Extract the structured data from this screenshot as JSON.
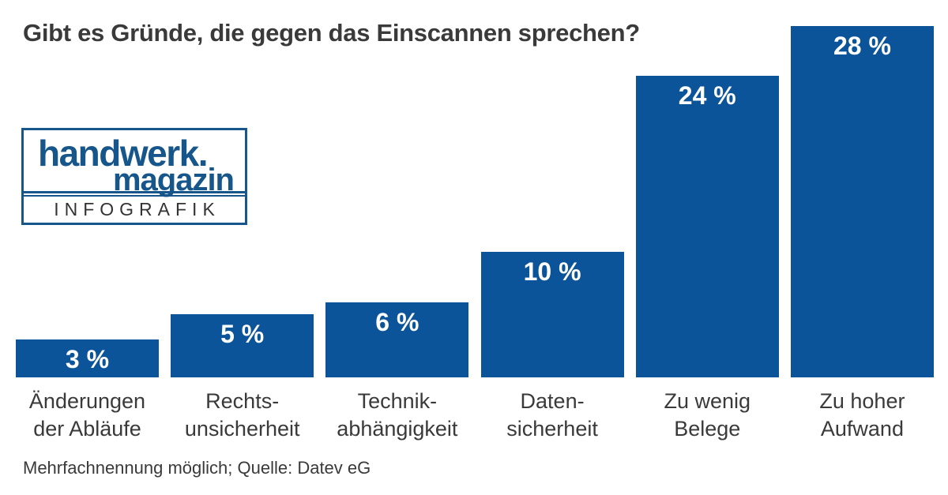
{
  "title": "Gibt es Gründe, die gegen das Einscannen sprechen?",
  "logo": {
    "line1": "handwerk.",
    "line2": "magazin",
    "banner": "INFOGRAFIK"
  },
  "footer": "Mehrfachnennung möglich; Quelle: Datev eG",
  "colors": {
    "bar_blue": "#0b5499",
    "logo_blue": "#17568a",
    "text_dark": "#3a3a3a",
    "value_label_white": "#ffffff",
    "background": "#ffffff"
  },
  "chart_data": {
    "type": "bar",
    "title": "Gibt es Gründe, die gegen das Einscannen sprechen?",
    "categories": [
      "Änderungen der Abläufe",
      "Rechtsunsicherheit",
      "Technikabhängigkeit",
      "Datensicherheit",
      "Zu wenig Belege",
      "Zu hoher Aufwand"
    ],
    "category_lines": [
      [
        "Änderungen",
        "der Abläufe"
      ],
      [
        "Rechts-",
        "unsicherheit"
      ],
      [
        "Technik-",
        "abhängigkeit"
      ],
      [
        "Daten-",
        "sicherheit"
      ],
      [
        "Zu wenig",
        "Belege"
      ],
      [
        "Zu hoher",
        "Aufwand"
      ]
    ],
    "values": [
      3,
      5,
      6,
      10,
      24,
      28
    ],
    "value_labels": [
      "3 %",
      "5 %",
      "6 %",
      "10 %",
      "24 %",
      "28 %"
    ],
    "unit": "%",
    "xlabel": "",
    "ylabel": "",
    "ylim": [
      0,
      30
    ],
    "grid": false,
    "legend": false,
    "note": "Mehrfachnennung möglich",
    "source": "Datev eG"
  }
}
